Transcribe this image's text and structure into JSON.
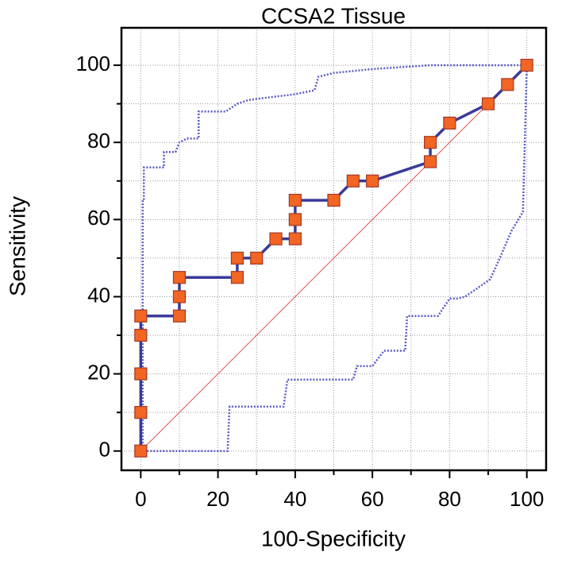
{
  "chart_data": {
    "type": "line",
    "title": "CCSA2  Tissue",
    "x_label": "100-Specificity",
    "y_label": "Sensitivity",
    "xlim": [
      -5,
      105
    ],
    "ylim": [
      -5,
      109.7
    ],
    "xticks": [
      0,
      20,
      40,
      60,
      80,
      100
    ],
    "yticks": [
      0,
      20,
      40,
      60,
      80,
      100
    ],
    "xminor": [
      10,
      30,
      50,
      70,
      90
    ],
    "yminor": [
      10,
      30,
      50,
      70,
      90
    ],
    "grid": true,
    "series": [
      {
        "style": "diagonal",
        "color": "#e05050",
        "x": [
          0,
          100
        ],
        "values": [
          0,
          100
        ]
      },
      {
        "style": "dotted",
        "color": "#5a5ac8",
        "x": [
          0,
          0.5,
          0.5,
          0.8,
          0.8,
          6,
          6,
          9,
          10,
          12,
          15,
          15,
          22,
          25,
          28,
          40,
          45,
          46,
          50,
          60,
          75,
          100
        ],
        "values": [
          0,
          0,
          65,
          65,
          73.5,
          73.5,
          77.5,
          77.5,
          80,
          81,
          81,
          88,
          88,
          90,
          91,
          92.5,
          93.5,
          97,
          98,
          99,
          100,
          100
        ]
      },
      {
        "style": "dotted",
        "color": "#5a5ac8",
        "x": [
          0,
          22.5,
          23,
          37,
          38,
          55,
          56,
          60,
          63,
          68.5,
          69,
          77,
          80,
          82,
          84,
          90.5,
          93,
          96,
          99,
          100
        ],
        "values": [
          0,
          0,
          11.5,
          11.5,
          18.5,
          18.5,
          22,
          22,
          26,
          26,
          35,
          35,
          39.5,
          39.5,
          40,
          44.5,
          50,
          57,
          62,
          100
        ]
      },
      {
        "style": "markers",
        "color": "#3a3a9a",
        "marker_color": "#f26522",
        "x": [
          0,
          0,
          0,
          0,
          0,
          10,
          10,
          10,
          25,
          25,
          30,
          35,
          40,
          40,
          40,
          50,
          55,
          60,
          75,
          75,
          80,
          90,
          95,
          100
        ],
        "values": [
          0,
          10,
          20,
          30,
          35,
          35,
          40,
          45,
          45,
          50,
          50,
          55,
          55,
          60,
          65,
          65,
          70,
          70,
          75,
          80,
          85,
          90,
          95,
          100
        ]
      }
    ]
  }
}
